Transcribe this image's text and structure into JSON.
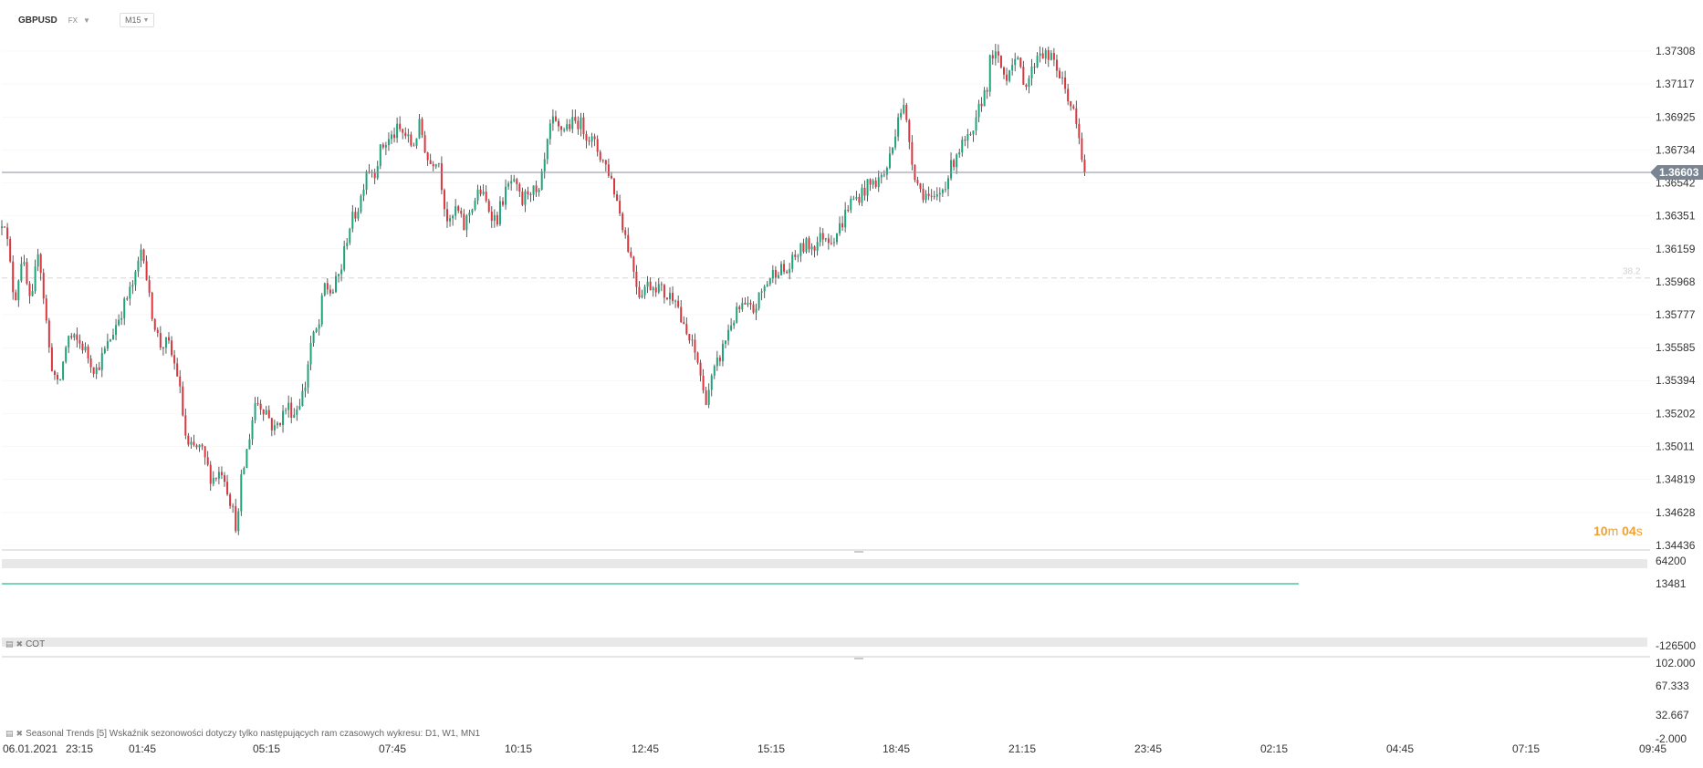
{
  "header": {
    "symbol": "GBPUSD",
    "market": "FX",
    "timeframe": "M15"
  },
  "colors": {
    "up": "#1fa37a",
    "down": "#d9363e",
    "wick": "#333333",
    "grid": "#e6e6e6",
    "current_price_bg": "#7a8591",
    "countdown": "#f0a032",
    "indicator_line": "#4cc9a0",
    "level_line": "#d6d6d6"
  },
  "price_axis": {
    "ticks": [
      "1.37308",
      "1.37117",
      "1.36925",
      "1.36734",
      "1.36542",
      "1.36351",
      "1.36159",
      "1.35968",
      "1.35777",
      "1.35585",
      "1.35394",
      "1.35202",
      "1.35011",
      "1.34819",
      "1.34628",
      "1.34436"
    ],
    "current_price": "1.36603",
    "countdown_minutes": "10",
    "countdown_min_unit": "m",
    "countdown_seconds": "04",
    "countdown_sec_unit": "s",
    "level_label": "38.2"
  },
  "cot_pane": {
    "label": "COT",
    "ticks": [
      "64200",
      "13481",
      "-126500"
    ]
  },
  "seasonal_pane": {
    "label": "Seasonal Trends [5] Wskaźnik sezonowości dotyczy tylko następujących ram czasowych wykresu: D1, W1, MN1",
    "ticks": [
      "102.000",
      "67.333",
      "32.667",
      "-2.000"
    ]
  },
  "time_axis": {
    "labels": [
      "06.01.2021",
      "23:15",
      "01:45",
      "05:15",
      "07:45",
      "10:15",
      "12:45",
      "15:15",
      "18:45",
      "21:15",
      "23:45",
      "02:15",
      "04:45",
      "07:15",
      "09:45"
    ]
  },
  "chart_data": {
    "type": "candlestick",
    "symbol": "GBPUSD",
    "timeframe": "M15",
    "current_price": 1.36603,
    "fib_level_label": "38.2",
    "fib_level_price": 1.3599,
    "ylim": [
      1.34436,
      1.374
    ],
    "yticks": [
      1.37308,
      1.37117,
      1.36925,
      1.36734,
      1.36542,
      1.36351,
      1.36159,
      1.35968,
      1.35777,
      1.35585,
      1.35394,
      1.35202,
      1.35011,
      1.34819,
      1.34628,
      1.34436
    ],
    "x_labels": [
      "06.01.2021",
      "23:15",
      "01:45",
      "05:15",
      "07:45",
      "10:15",
      "12:45",
      "15:15",
      "18:45",
      "21:15",
      "23:45",
      "02:15",
      "04:45",
      "07:15",
      "09:45"
    ],
    "path": [
      [
        0,
        1.3628
      ],
      [
        4,
        1.3637
      ],
      [
        16,
        1.3585
      ],
      [
        24,
        1.3612
      ],
      [
        34,
        1.358
      ],
      [
        42,
        1.3618
      ],
      [
        55,
        1.3552
      ],
      [
        64,
        1.3534
      ],
      [
        74,
        1.3565
      ],
      [
        90,
        1.356
      ],
      [
        105,
        1.3545
      ],
      [
        118,
        1.356
      ],
      [
        130,
        1.3576
      ],
      [
        148,
        1.3598
      ],
      [
        156,
        1.362
      ],
      [
        164,
        1.3585
      ],
      [
        175,
        1.356
      ],
      [
        184,
        1.3561
      ],
      [
        195,
        1.3542
      ],
      [
        205,
        1.35
      ],
      [
        220,
        1.35
      ],
      [
        232,
        1.3482
      ],
      [
        244,
        1.3488
      ],
      [
        254,
        1.3466
      ],
      [
        260,
        1.3452
      ],
      [
        264,
        1.348
      ],
      [
        270,
        1.3497
      ],
      [
        280,
        1.3528
      ],
      [
        292,
        1.3522
      ],
      [
        300,
        1.351
      ],
      [
        315,
        1.3525
      ],
      [
        322,
        1.352
      ],
      [
        334,
        1.3535
      ],
      [
        340,
        1.356
      ],
      [
        350,
        1.3572
      ],
      [
        355,
        1.3595
      ],
      [
        364,
        1.359
      ],
      [
        374,
        1.3605
      ],
      [
        382,
        1.3628
      ],
      [
        394,
        1.3642
      ],
      [
        402,
        1.3664
      ],
      [
        410,
        1.366
      ],
      [
        418,
        1.3675
      ],
      [
        428,
        1.368
      ],
      [
        436,
        1.3685
      ],
      [
        444,
        1.3682
      ],
      [
        452,
        1.3675
      ],
      [
        460,
        1.3688
      ],
      [
        470,
        1.3665
      ],
      [
        480,
        1.367
      ],
      [
        486,
        1.3645
      ],
      [
        492,
        1.3628
      ],
      [
        500,
        1.364
      ],
      [
        508,
        1.3628
      ],
      [
        516,
        1.364
      ],
      [
        526,
        1.365
      ],
      [
        534,
        1.3641
      ],
      [
        544,
        1.3632
      ],
      [
        550,
        1.3644
      ],
      [
        560,
        1.3655
      ],
      [
        566,
        1.365
      ],
      [
        572,
        1.3642
      ],
      [
        580,
        1.3652
      ],
      [
        590,
        1.3645
      ],
      [
        598,
        1.367
      ],
      [
        604,
        1.369
      ],
      [
        612,
        1.3685
      ],
      [
        624,
        1.3688
      ],
      [
        634,
        1.369
      ],
      [
        644,
        1.3682
      ],
      [
        652,
        1.3676
      ],
      [
        660,
        1.3668
      ],
      [
        668,
        1.366
      ],
      [
        678,
        1.364
      ],
      [
        686,
        1.3622
      ],
      [
        694,
        1.3605
      ],
      [
        700,
        1.359
      ],
      [
        708,
        1.3595
      ],
      [
        720,
        1.3595
      ],
      [
        730,
        1.3588
      ],
      [
        740,
        1.359
      ],
      [
        748,
        1.357
      ],
      [
        758,
        1.356
      ],
      [
        766,
        1.3548
      ],
      [
        772,
        1.3527
      ],
      [
        780,
        1.354
      ],
      [
        790,
        1.3555
      ],
      [
        800,
        1.3572
      ],
      [
        812,
        1.3582
      ],
      [
        826,
        1.358
      ],
      [
        834,
        1.359
      ],
      [
        842,
        1.3598
      ],
      [
        852,
        1.3605
      ],
      [
        862,
        1.3602
      ],
      [
        872,
        1.3612
      ],
      [
        882,
        1.3618
      ],
      [
        892,
        1.3618
      ],
      [
        902,
        1.3624
      ],
      [
        912,
        1.3622
      ],
      [
        922,
        1.363
      ],
      [
        930,
        1.3642
      ],
      [
        940,
        1.3646
      ],
      [
        950,
        1.3652
      ],
      [
        960,
        1.3655
      ],
      [
        970,
        1.366
      ],
      [
        978,
        1.3675
      ],
      [
        984,
        1.3695
      ],
      [
        990,
        1.3698
      ],
      [
        996,
        1.368
      ],
      [
        1002,
        1.366
      ],
      [
        1008,
        1.365
      ],
      [
        1014,
        1.3648
      ],
      [
        1022,
        1.3642
      ],
      [
        1032,
        1.365
      ],
      [
        1040,
        1.366
      ],
      [
        1048,
        1.3672
      ],
      [
        1058,
        1.3678
      ],
      [
        1066,
        1.368
      ],
      [
        1074,
        1.37
      ],
      [
        1082,
        1.3712
      ],
      [
        1086,
        1.373
      ],
      [
        1094,
        1.3725
      ],
      [
        1102,
        1.3715
      ],
      [
        1110,
        1.3728
      ],
      [
        1118,
        1.372
      ],
      [
        1124,
        1.3712
      ],
      [
        1130,
        1.3718
      ],
      [
        1138,
        1.3732
      ],
      [
        1146,
        1.3728
      ],
      [
        1156,
        1.3724
      ],
      [
        1164,
        1.3712
      ],
      [
        1170,
        1.3705
      ],
      [
        1176,
        1.3695
      ],
      [
        1182,
        1.368
      ],
      [
        1186,
        1.3665
      ],
      [
        1190,
        1.366
      ]
    ]
  }
}
